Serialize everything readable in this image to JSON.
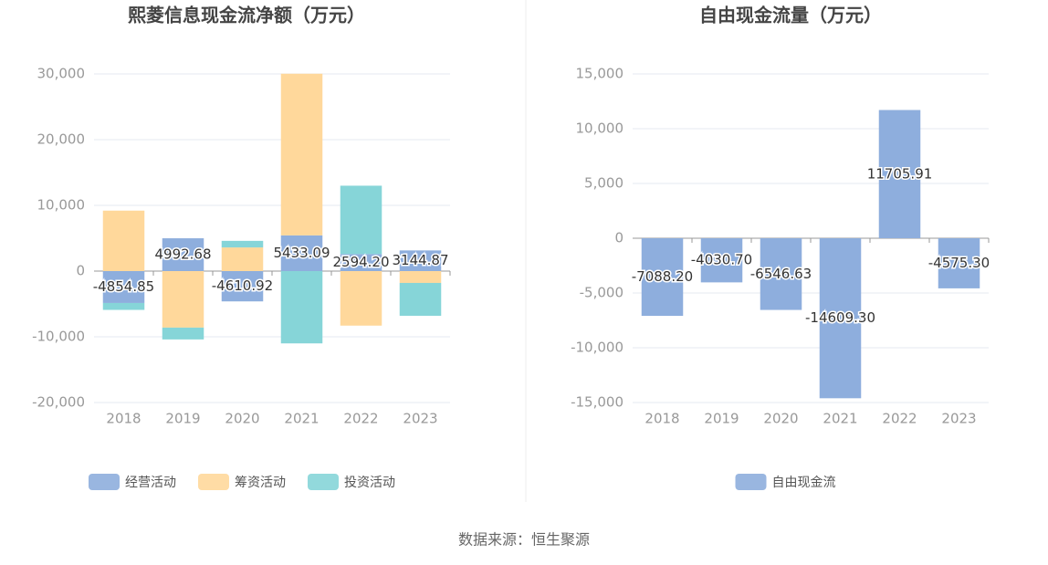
{
  "source": "数据来源：恒生聚源",
  "chart_data": [
    {
      "type": "stacked-bar",
      "title": "熙菱信息现金流净额（万元）",
      "categories": [
        "2018",
        "2019",
        "2020",
        "2021",
        "2022",
        "2023"
      ],
      "series": [
        {
          "name": "经营活动",
          "color": "#8eaedd",
          "values": [
            -4854.85,
            4992.68,
            -4610.92,
            5433.09,
            2594.2,
            3144.87
          ],
          "value_labels": [
            "-4854.85",
            "4992.68",
            "-4610.92",
            "5433.09",
            "2594.20",
            "3144.87"
          ]
        },
        {
          "name": "筹资活动",
          "color": "#ffd89b",
          "values": [
            9200,
            -8600,
            3600,
            24600,
            -8300,
            -1800
          ]
        },
        {
          "name": "投资活动",
          "color": "#86d5d8",
          "values": [
            -1050,
            -1800,
            1000,
            -11000,
            10400,
            -5000
          ]
        }
      ],
      "ylim": [
        -20000,
        30000
      ],
      "yticks": [
        {
          "value": -20000,
          "label": "-20,000"
        },
        {
          "value": -10000,
          "label": "-10,000"
        },
        0,
        {
          "value": 10000,
          "label": "10,000"
        },
        {
          "value": 20000,
          "label": "20,000"
        },
        {
          "value": 30000,
          "label": "30,000"
        }
      ],
      "grid": true
    },
    {
      "type": "bar",
      "title": "自由现金流量（万元）",
      "categories": [
        "2018",
        "2019",
        "2020",
        "2021",
        "2022",
        "2023"
      ],
      "series": [
        {
          "name": "自由现金流",
          "color": "#8eaedd",
          "values": [
            -7088.2,
            -4030.7,
            -6546.63,
            -14609.3,
            11705.91,
            -4575.3
          ],
          "value_labels": [
            "-7088.20",
            "-4030.70",
            "-6546.63",
            "-14609.30",
            "11705.91",
            "-4575.30"
          ]
        }
      ],
      "ylim": [
        -15000,
        15000
      ],
      "yticks": [
        {
          "value": -15000,
          "label": "-15,000"
        },
        {
          "value": -10000,
          "label": "-10,000"
        },
        {
          "value": -5000,
          "label": "-5,000"
        },
        0,
        {
          "value": 5000,
          "label": "5,000"
        },
        {
          "value": 10000,
          "label": "10,000"
        },
        {
          "value": 15000,
          "label": "15,000"
        }
      ],
      "grid": true
    }
  ]
}
